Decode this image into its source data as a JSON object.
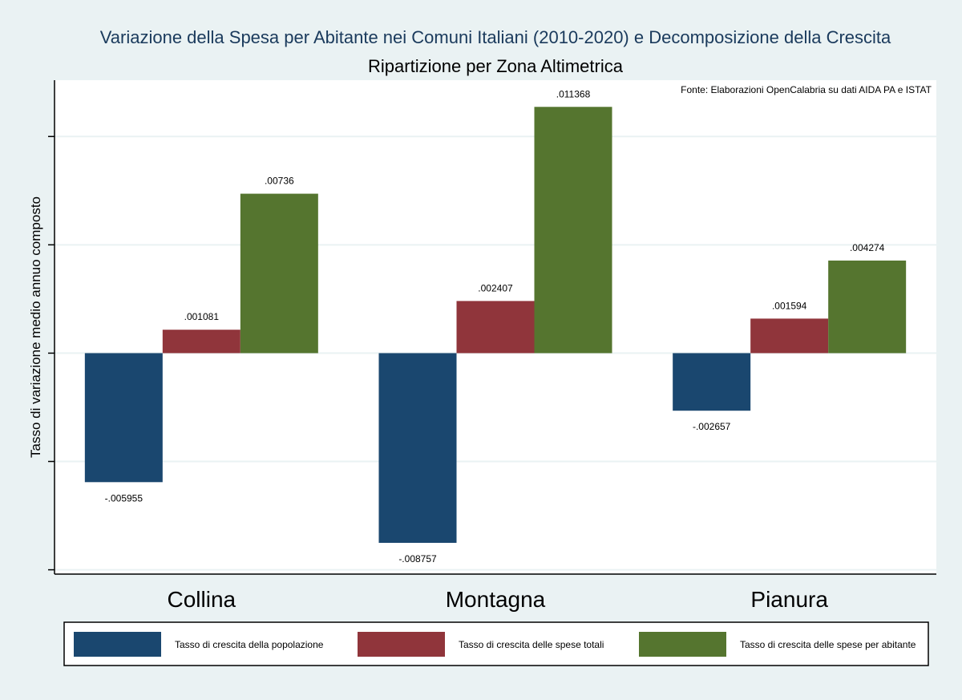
{
  "chart_data": {
    "type": "bar",
    "title": "Variazione della Spesa per Abitante nei Comuni Italiani (2010-2020) e Decomposizione della Crescita",
    "subtitle": "Ripartizione per Zona Altimetrica",
    "note": "Fonte: Elaborazioni OpenCalabria su dati AIDA PA e ISTAT",
    "xlabel": "",
    "ylabel": "Tasso di variazione medio annuo composto",
    "ylim": [
      -0.0102,
      0.0126
    ],
    "yticks": [
      -0.01,
      -0.005,
      0,
      0.005,
      0.01
    ],
    "ytick_labels_shown": false,
    "grid": true,
    "legend_position": "bottom",
    "categories": [
      "Collina",
      "Montagna",
      "Pianura"
    ],
    "series": [
      {
        "name": "Tasso di crescita della popolazione",
        "color": "#1a476f",
        "values": [
          -0.005955,
          -0.008757,
          -0.002657
        ],
        "labels": [
          "-.005955",
          "-.008757",
          "-.002657"
        ]
      },
      {
        "name": "Tasso di crescita delle spese totali",
        "color": "#90353b",
        "values": [
          0.001081,
          0.002407,
          0.001594
        ],
        "labels": [
          ".001081",
          ".002407",
          ".001594"
        ]
      },
      {
        "name": "Tasso di crescita delle spese per abitante",
        "color": "#55752f",
        "values": [
          0.00736,
          0.011368,
          0.004274
        ],
        "labels": [
          ".00736",
          ".011368",
          ".004274"
        ]
      }
    ]
  },
  "colors": {
    "background": "#eaf2f3",
    "plot_background": "#ffffff",
    "title_color": "#1a3a5c",
    "grid": "#eaf2f3"
  }
}
